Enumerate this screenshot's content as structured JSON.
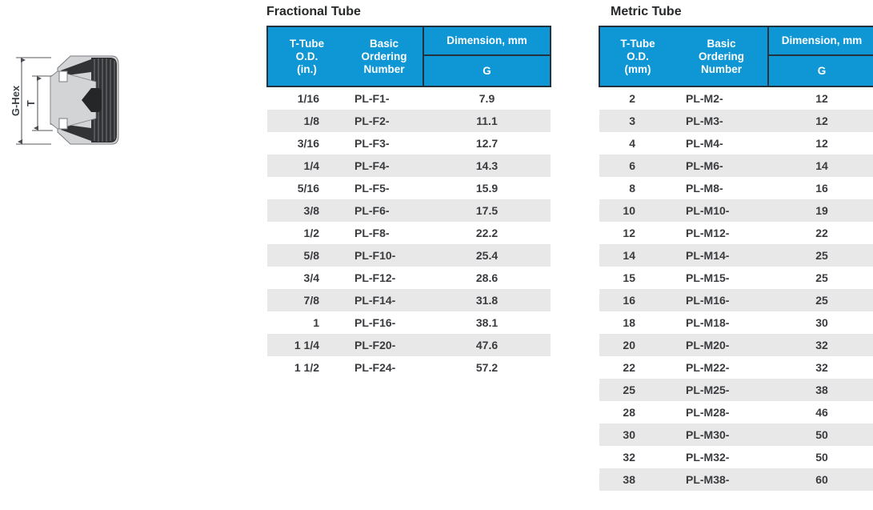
{
  "diagram": {
    "g_hex_label": "G-Hex",
    "t_label": "T"
  },
  "fractional": {
    "title": "Fractional Tube",
    "headers": {
      "od": "T-Tube\nO.D.\n(in.)",
      "ordering": "Basic\nOrdering\nNumber",
      "dimension": "Dimension, mm",
      "g": "G"
    },
    "rows": [
      [
        "1/16",
        "PL-F1-",
        "7.9"
      ],
      [
        "1/8",
        "PL-F2-",
        "11.1"
      ],
      [
        "3/16",
        "PL-F3-",
        "12.7"
      ],
      [
        "1/4",
        "PL-F4-",
        "14.3"
      ],
      [
        "5/16",
        "PL-F5-",
        "15.9"
      ],
      [
        "3/8",
        "PL-F6-",
        "17.5"
      ],
      [
        "1/2",
        "PL-F8-",
        "22.2"
      ],
      [
        "5/8",
        "PL-F10-",
        "25.4"
      ],
      [
        "3/4",
        "PL-F12-",
        "28.6"
      ],
      [
        "7/8",
        "PL-F14-",
        "31.8"
      ],
      [
        "1",
        "PL-F16-",
        "38.1"
      ],
      [
        "1 1/4",
        "PL-F20-",
        "47.6"
      ],
      [
        "1 1/2",
        "PL-F24-",
        "57.2"
      ]
    ]
  },
  "metric": {
    "title": "Metric Tube",
    "headers": {
      "od": "T-Tube\nO.D.\n(mm)",
      "ordering": "Basic\nOrdering\nNumber",
      "dimension": "Dimension, mm",
      "g": "G"
    },
    "rows": [
      [
        "2",
        "PL-M2-",
        "12"
      ],
      [
        "3",
        "PL-M3-",
        "12"
      ],
      [
        "4",
        "PL-M4-",
        "12"
      ],
      [
        "6",
        "PL-M6-",
        "14"
      ],
      [
        "8",
        "PL-M8-",
        "16"
      ],
      [
        "10",
        "PL-M10-",
        "19"
      ],
      [
        "12",
        "PL-M12-",
        "22"
      ],
      [
        "14",
        "PL-M14-",
        "25"
      ],
      [
        "15",
        "PL-M15-",
        "25"
      ],
      [
        "16",
        "PL-M16-",
        "25"
      ],
      [
        "18",
        "PL-M18-",
        "30"
      ],
      [
        "20",
        "PL-M20-",
        "32"
      ],
      [
        "22",
        "PL-M22-",
        "32"
      ],
      [
        "25",
        "PL-M25-",
        "38"
      ],
      [
        "28",
        "PL-M28-",
        "46"
      ],
      [
        "30",
        "PL-M30-",
        "50"
      ],
      [
        "32",
        "PL-M32-",
        "50"
      ],
      [
        "38",
        "PL-M38-",
        "60"
      ]
    ]
  },
  "colors": {
    "header_blue": "#0e96d5",
    "border_dark": "#22323e",
    "row_stripe": "#e8e8e9",
    "text_dark": "#393b3e"
  }
}
